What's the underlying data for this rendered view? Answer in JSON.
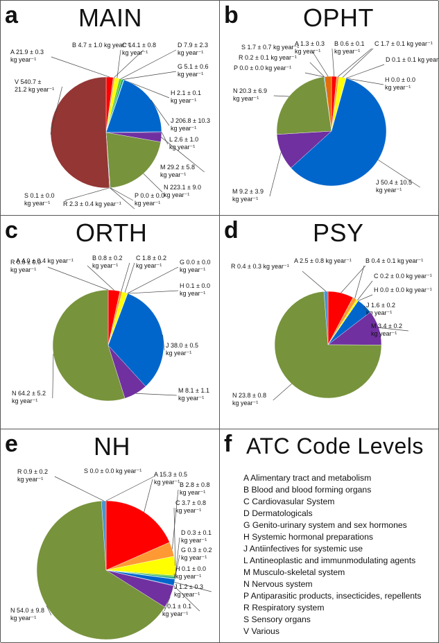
{
  "colors": {
    "A": "#ff0000",
    "B": "#ff9933",
    "C": "#ffff00",
    "D": "#66cc33",
    "G": "#009966",
    "H": "#33ccff",
    "J": "#0066cc",
    "L": "#000099",
    "M": "#7030a0",
    "N": "#77933c",
    "P": "#ff66cc",
    "R": "#4d94cc",
    "S": "#e46c0a",
    "V": "#943634"
  },
  "chart_data": [
    {
      "type": "pie",
      "letter": "a",
      "title": "MAIN",
      "slices": [
        {
          "code": "A",
          "value": 21.9,
          "label": "A 21.9 ± 0.3",
          "label2": "kg year⁻¹"
        },
        {
          "code": "B",
          "value": 4.7,
          "label": "B 4.7 ± 1.0 kg year⁻¹"
        },
        {
          "code": "C",
          "value": 14.1,
          "label": "C 14.1 ± 0.8",
          "label2": "kg year⁻¹"
        },
        {
          "code": "D",
          "value": 7.9,
          "label": "D 7.9 ± 2.3",
          "label2": "kg year⁻¹"
        },
        {
          "code": "G",
          "value": 5.1,
          "label": "G 5.1 ± 0.6",
          "label2": "kg year⁻¹"
        },
        {
          "code": "H",
          "value": 2.1,
          "label": "H 2.1 ± 0.1",
          "label2": "kg year⁻¹"
        },
        {
          "code": "J",
          "value": 206.8,
          "label": "J 206.8 ± 10.3",
          "label2": "kg year⁻¹"
        },
        {
          "code": "L",
          "value": 2.6,
          "label": "L 2.6 ± 1.0",
          "label2": "kg year⁻¹"
        },
        {
          "code": "M",
          "value": 29.2,
          "label": "M 29.2  ± 5.8",
          "label2": "kg year⁻¹"
        },
        {
          "code": "N",
          "value": 223.1,
          "label": "N 223.1 ± 9.0",
          "label2": "kg year⁻¹"
        },
        {
          "code": "P",
          "value": 0.0,
          "label": "P 0.0 ± 0.0",
          "label2": "kg year⁻¹"
        },
        {
          "code": "R",
          "value": 2.3,
          "label": "R 2.3 ± 0.4 kg year⁻¹"
        },
        {
          "code": "S",
          "value": 0.1,
          "label": "S 0.1  ± 0.0",
          "label2": "kg year⁻¹"
        },
        {
          "code": "V",
          "value": 540.7,
          "label": "V 540.7 ±",
          "label2": "21.2 kg year⁻¹"
        }
      ]
    },
    {
      "type": "pie",
      "letter": "b",
      "title": "OPHT",
      "slices": [
        {
          "code": "A",
          "value": 1.3,
          "label": "A 1.3 ± 0.3",
          "label2": "kg year⁻¹"
        },
        {
          "code": "B",
          "value": 0.6,
          "label": "B 0.6 ± 0.1",
          "label2": "kg year⁻¹"
        },
        {
          "code": "C",
          "value": 1.7,
          "label": "C 1.7 ± 0.1 kg year⁻¹"
        },
        {
          "code": "D",
          "value": 0.1,
          "label": "D 0.1 ± 0.1 kg year⁻¹"
        },
        {
          "code": "H",
          "value": 0.0,
          "label": "H 0.0 ± 0.0",
          "label2": "kg year⁻¹"
        },
        {
          "code": "J",
          "value": 50.4,
          "label": "J 50.4 ± 10.5",
          "label2": "kg year⁻¹"
        },
        {
          "code": "M",
          "value": 9.2,
          "label": "M 9.2 ± 3.9",
          "label2": "kg year⁻¹"
        },
        {
          "code": "N",
          "value": 20.3,
          "label": "N 20.3 ± 6.9",
          "label2": "kg year⁻¹"
        },
        {
          "code": "P",
          "value": 0.0,
          "label": "P 0.0 ± 0.0 kg year⁻¹"
        },
        {
          "code": "R",
          "value": 0.2,
          "label": "R 0.2 ± 0.1 kg year⁻¹"
        },
        {
          "code": "S",
          "value": 1.7,
          "label": "S 1.7 ± 0.7 kg year⁻¹"
        }
      ]
    },
    {
      "type": "pie",
      "letter": "c",
      "title": "ORTH",
      "slices": [
        {
          "code": "A",
          "value": 4.0,
          "label": "A 4.0 ± 0.4 kg year⁻¹"
        },
        {
          "code": "B",
          "value": 0.8,
          "label": "B 0.8 ± 0.2",
          "label2": "kg year⁻¹"
        },
        {
          "code": "C",
          "value": 1.8,
          "label": "C 1.8 ± 0.2",
          "label2": "kg year⁻¹"
        },
        {
          "code": "G",
          "value": 0.0,
          "label": "G 0.0 ± 0.0",
          "label2": "kg year⁻¹"
        },
        {
          "code": "H",
          "value": 0.1,
          "label": "H 0.1 ± 0.0",
          "label2": "kg year⁻¹"
        },
        {
          "code": "J",
          "value": 38.0,
          "label": "J 38.0 ± 0.5",
          "label2": "kg year⁻¹"
        },
        {
          "code": "M",
          "value": 8.1,
          "label": "M 8.1 ± 1.1",
          "label2": "kg year⁻¹"
        },
        {
          "code": "N",
          "value": 64.2,
          "label": "N 64.2 ± 5.2",
          "label2": "kg year⁻¹"
        },
        {
          "code": "R",
          "value": 0.0,
          "label": "R 0.0 ± 0.0",
          "label2": "kg year⁻¹"
        }
      ]
    },
    {
      "type": "pie",
      "letter": "d",
      "title": "PSY",
      "slices": [
        {
          "code": "A",
          "value": 2.5,
          "label": "A 2.5 ± 0.8 kg year⁻¹"
        },
        {
          "code": "B",
          "value": 0.4,
          "label": "B 0.4 ± 0.1 kg year⁻¹"
        },
        {
          "code": "C",
          "value": 0.2,
          "label": "C 0.2 ± 0.0 kg year⁻¹"
        },
        {
          "code": "H",
          "value": 0.0,
          "label": "H 0.0 ± 0.0 kg year⁻¹"
        },
        {
          "code": "J",
          "value": 1.6,
          "label": "J 1.6 ± 0.2",
          "label2": "kg year⁻¹"
        },
        {
          "code": "M",
          "value": 3.4,
          "label": "M 3.4 ± 0.2",
          "label2": "kg year⁻¹"
        },
        {
          "code": "N",
          "value": 23.8,
          "label": "N 23.8 ± 0.8",
          "label2": "kg year⁻¹"
        },
        {
          "code": "R",
          "value": 0.4,
          "label": "R 0.4 ± 0.3 kg year⁻¹"
        }
      ]
    },
    {
      "type": "pie",
      "letter": "e",
      "title": "NH",
      "slices": [
        {
          "code": "A",
          "value": 15.3,
          "label": "A 15.3 ± 0.5",
          "label2": "kg year⁻¹"
        },
        {
          "code": "B",
          "value": 2.8,
          "label": "B 2.8 ± 0.8",
          "label2": "kg year⁻¹"
        },
        {
          "code": "C",
          "value": 3.7,
          "label": "C 3.7 ± 0.8",
          "label2": "kg year⁻¹"
        },
        {
          "code": "D",
          "value": 0.3,
          "label": "D 0.3 ± 0.1",
          "label2": "kg year⁻¹"
        },
        {
          "code": "G",
          "value": 0.3,
          "label": "G 0.3 ± 0.2",
          "label2": "kg year⁻¹"
        },
        {
          "code": "H",
          "value": 0.1,
          "label": "H 0.1 ± 0.0",
          "label2": "kg year⁻¹"
        },
        {
          "code": "J",
          "value": 1.2,
          "label": "J 1.2 ± 0.3",
          "label2": "kg year⁻¹"
        },
        {
          "code": "L",
          "value": 0.1,
          "label": "L 0.1 ± 0.1",
          "label2": "kg year⁻¹"
        },
        {
          "code": "M",
          "value": 4.4,
          "label": "M 4.4 ± 1.2",
          "label2": "kg year⁻¹"
        },
        {
          "code": "N",
          "value": 54.0,
          "label": "N 54.0 ± 9.8",
          "label2": "kg year⁻¹"
        },
        {
          "code": "R",
          "value": 0.9,
          "label": "R 0.9 ± 0.2",
          "label2": "kg year⁻¹"
        },
        {
          "code": "S",
          "value": 0.0,
          "label": "S 0.0 ± 0.0 kg year⁻¹"
        }
      ]
    }
  ],
  "legend": {
    "letter": "f",
    "title": "ATC Code Levels",
    "items": [
      "A Alimentary tract and metabolism",
      "B Blood and blood forming organs",
      "C Cardiovasular System",
      "D Dermatologicals",
      "G Genito-urinary system and sex hormones",
      "H Systemic hormonal preparations",
      "J Antiinfectives for systemic use",
      "L Antineoplastic and immunmodulating agents",
      "M Musculo-skeletal system",
      "N Nervous system",
      "P Antiparasitic products, insecticides, repellents",
      "R Respiratory system",
      "S Sensory organs",
      "V Various"
    ]
  }
}
